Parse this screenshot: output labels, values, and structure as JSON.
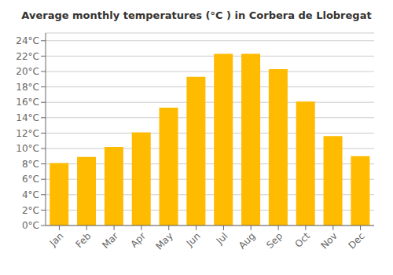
{
  "chart_data": {
    "type": "bar",
    "title": "Average monthly temperatures (°C ) in Corbera de Llobregat",
    "categories": [
      "Jan",
      "Feb",
      "Mar",
      "Apr",
      "May",
      "Jun",
      "Jul",
      "Aug",
      "Sep",
      "Oct",
      "Nov",
      "Dec"
    ],
    "values": [
      8.1,
      8.9,
      10.2,
      12.1,
      15.3,
      19.3,
      22.3,
      22.3,
      20.3,
      16.1,
      11.6,
      9.0
    ],
    "color": "#FFBB00",
    "ylim": [
      0,
      25
    ],
    "yticks": [
      {
        "value": 0,
        "label": "0°C"
      },
      {
        "value": 2,
        "label": "2°C"
      },
      {
        "value": 4,
        "label": "4°C"
      },
      {
        "value": 6,
        "label": "6°C"
      },
      {
        "value": 8,
        "label": "8°C"
      },
      {
        "value": 10,
        "label": "10°C"
      },
      {
        "value": 12,
        "label": "12°C"
      },
      {
        "value": 14,
        "label": "14°C"
      },
      {
        "value": 16,
        "label": "16°C"
      },
      {
        "value": 18,
        "label": "18°C"
      },
      {
        "value": 20,
        "label": "20°C"
      },
      {
        "value": 22,
        "label": "22°C"
      },
      {
        "value": 24,
        "label": "24°C"
      }
    ],
    "grid": true
  }
}
